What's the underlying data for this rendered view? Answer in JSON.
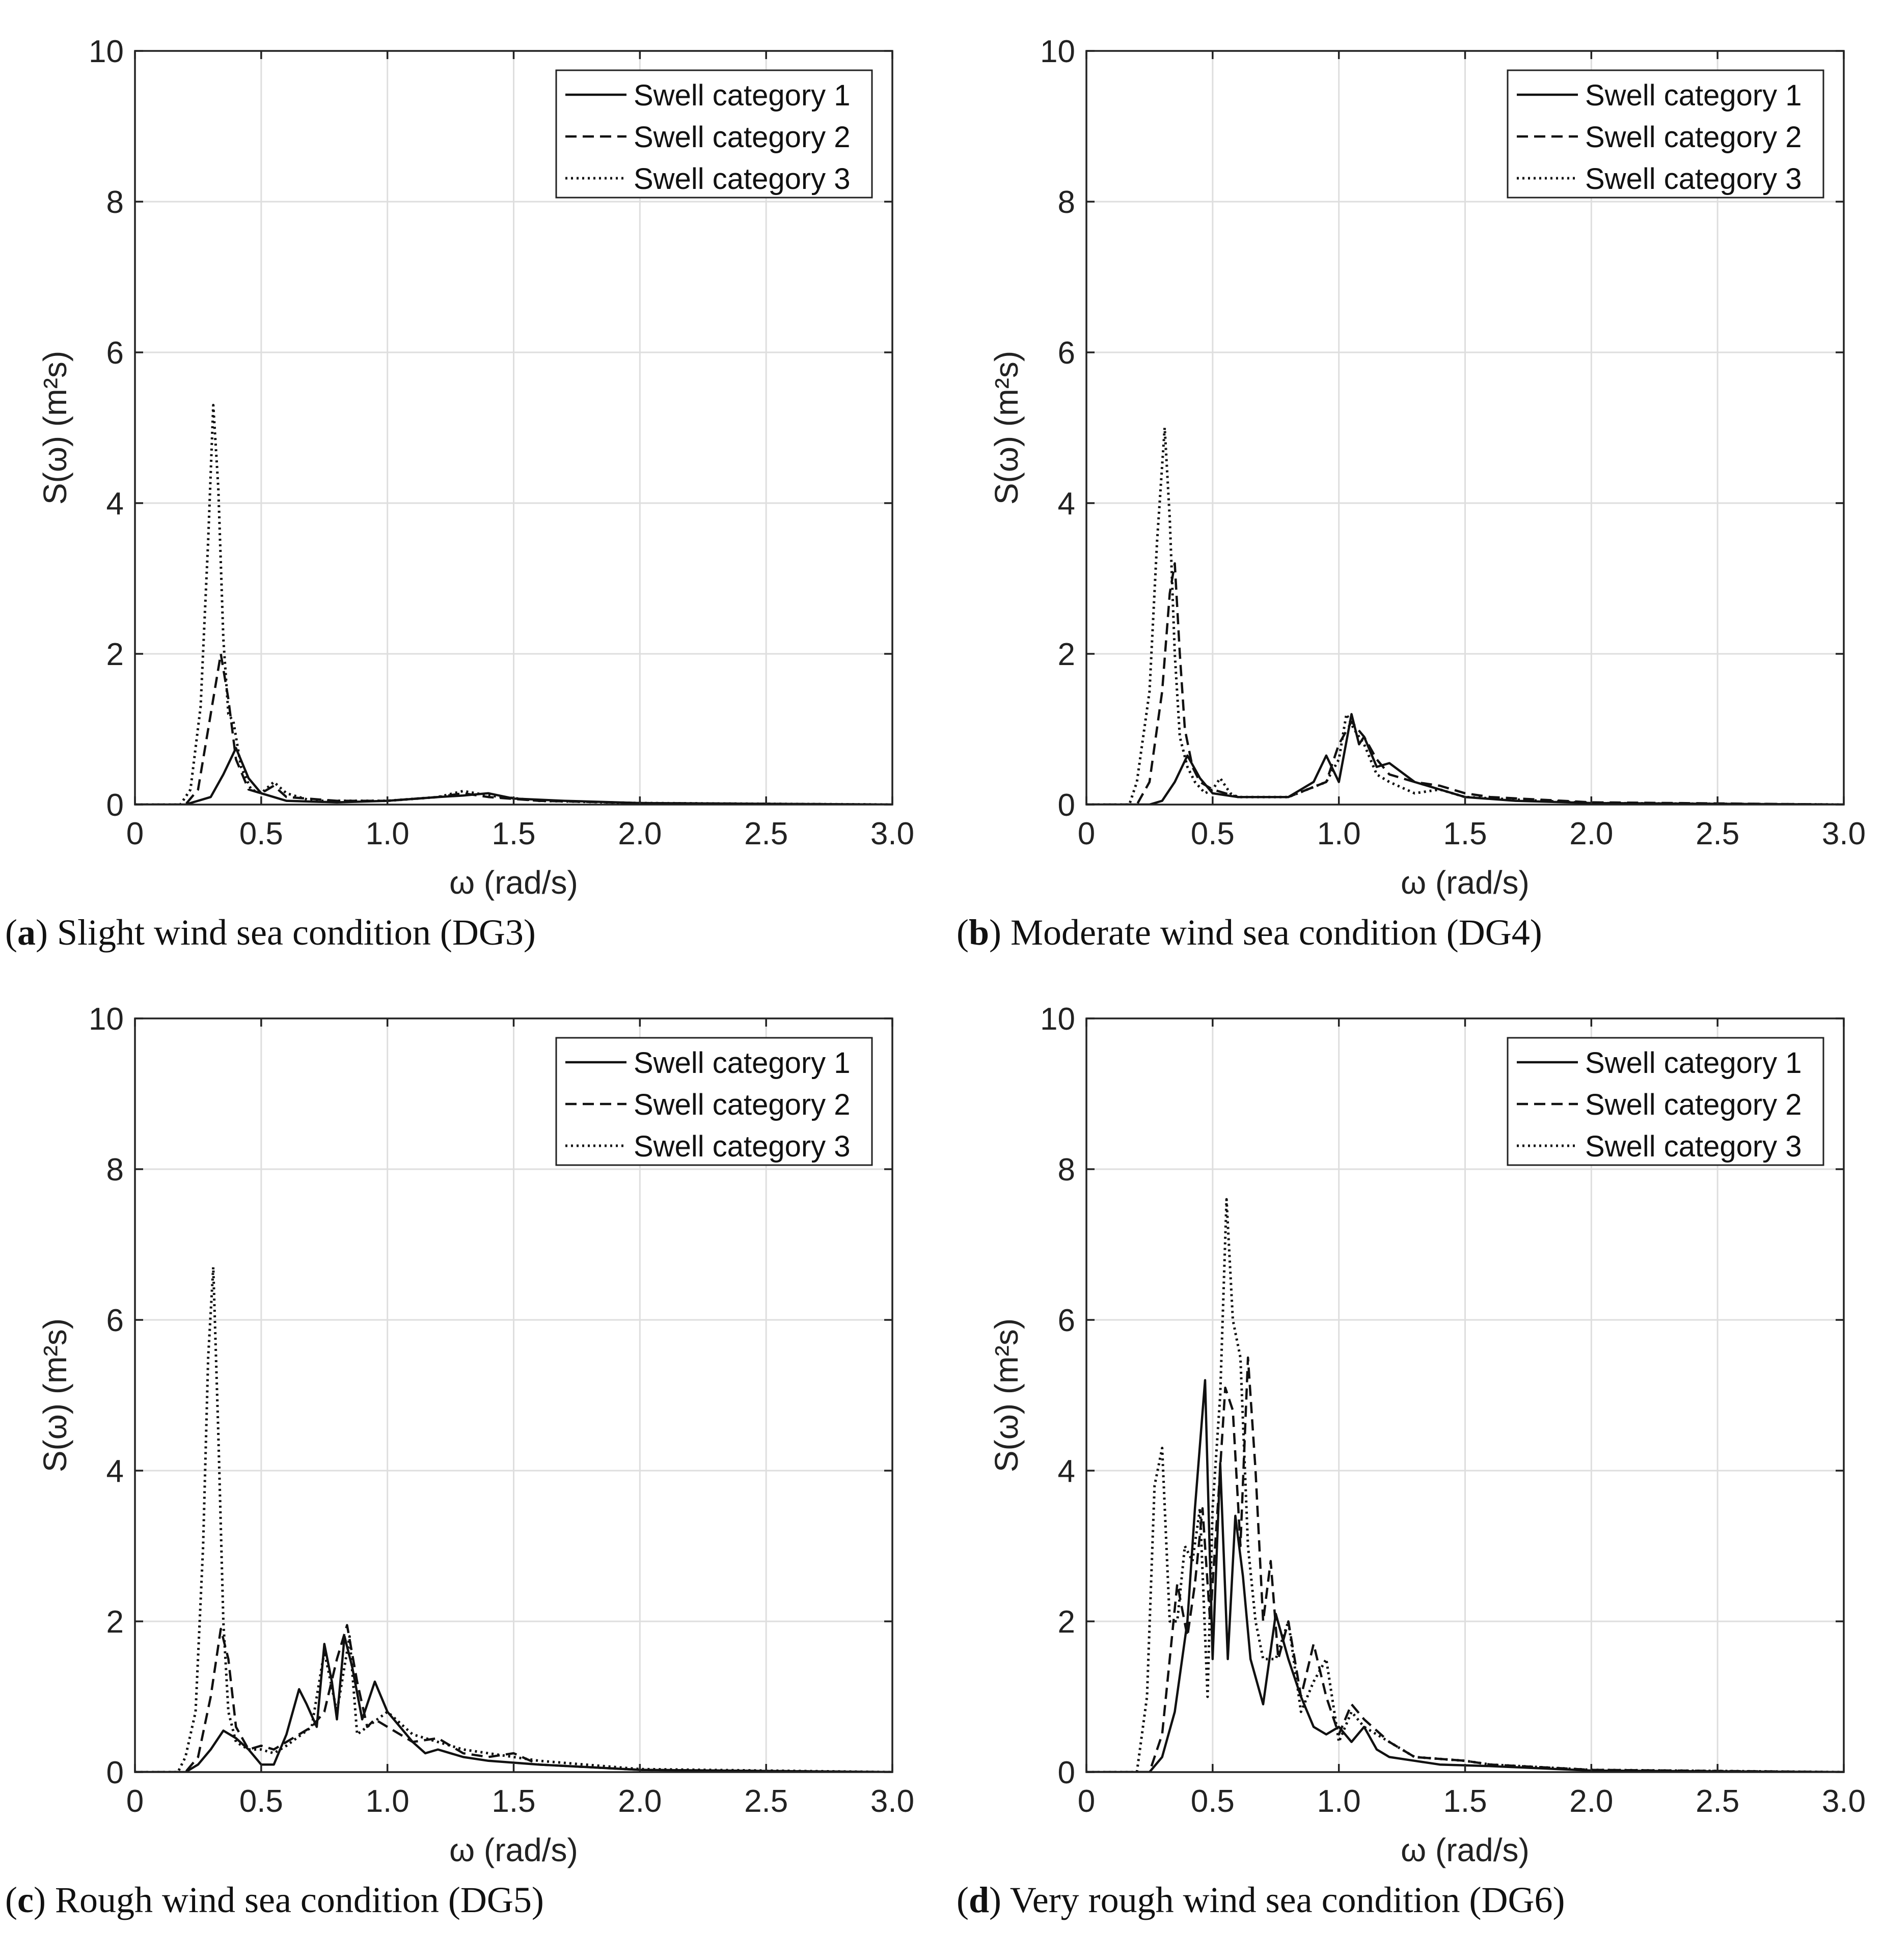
{
  "figure": {
    "panels": [
      {
        "id": "a",
        "caption_letter": "a",
        "caption_text": " Slight wind sea condition (DG3)",
        "chart_data": {
          "type": "line",
          "title": "",
          "xlabel": "ω (rad/s)",
          "ylabel": "S(ω) (m²s)",
          "xlim": [
            0,
            3.0
          ],
          "ylim": [
            0,
            10
          ],
          "xticks": [
            "0",
            "0.5",
            "1.0",
            "1.5",
            "2.0",
            "2.5",
            "3.0"
          ],
          "yticks": [
            "0",
            "2",
            "4",
            "6",
            "8",
            "10"
          ],
          "grid": true,
          "legend_position": "top-right",
          "series": [
            {
              "name": "Swell category 1",
              "style": "solid",
              "x": [
                0,
                0.2,
                0.3,
                0.35,
                0.4,
                0.45,
                0.5,
                0.6,
                0.8,
                1.0,
                1.2,
                1.3,
                1.4,
                1.5,
                1.7,
                2.0,
                3.0
              ],
              "y": [
                0,
                0,
                0.1,
                0.4,
                0.75,
                0.35,
                0.15,
                0.05,
                0.03,
                0.05,
                0.1,
                0.12,
                0.15,
                0.08,
                0.05,
                0.02,
                0
              ]
            },
            {
              "name": "Swell category 2",
              "style": "dashed",
              "x": [
                0,
                0.2,
                0.25,
                0.3,
                0.34,
                0.37,
                0.4,
                0.45,
                0.5,
                0.55,
                0.6,
                0.8,
                1.0,
                1.2,
                1.3,
                1.4,
                1.6,
                2.0,
                3.0
              ],
              "y": [
                0,
                0,
                0.2,
                1.2,
                2.0,
                1.4,
                0.6,
                0.2,
                0.15,
                0.25,
                0.1,
                0.05,
                0.05,
                0.1,
                0.15,
                0.1,
                0.05,
                0.02,
                0
              ]
            },
            {
              "name": "Swell category 3",
              "style": "dotted",
              "x": [
                0,
                0.18,
                0.22,
                0.26,
                0.29,
                0.31,
                0.33,
                0.35,
                0.37,
                0.39,
                0.42,
                0.46,
                0.5,
                0.55,
                0.6,
                0.7,
                1.0,
                1.2,
                1.3,
                1.4,
                1.6,
                2.0,
                3.0
              ],
              "y": [
                0,
                0,
                0.2,
                1.3,
                3.5,
                5.3,
                4.2,
                2.2,
                1.2,
                1.1,
                0.5,
                0.2,
                0.15,
                0.3,
                0.15,
                0.05,
                0.05,
                0.1,
                0.18,
                0.12,
                0.05,
                0.02,
                0
              ]
            }
          ]
        }
      },
      {
        "id": "b",
        "caption_letter": "b",
        "caption_text": " Moderate wind sea condition (DG4)",
        "chart_data": {
          "type": "line",
          "title": "",
          "xlabel": "ω (rad/s)",
          "ylabel": "S(ω) (m²s)",
          "xlim": [
            0,
            3.0
          ],
          "ylim": [
            0,
            10
          ],
          "xticks": [
            "0",
            "0.5",
            "1.0",
            "1.5",
            "2.0",
            "2.5",
            "3.0"
          ],
          "yticks": [
            "0",
            "2",
            "4",
            "6",
            "8",
            "10"
          ],
          "grid": true,
          "legend_position": "top-right",
          "series": [
            {
              "name": "Swell category 1",
              "style": "solid",
              "x": [
                0,
                0.25,
                0.3,
                0.35,
                0.4,
                0.45,
                0.5,
                0.6,
                0.8,
                0.9,
                0.95,
                1.0,
                1.05,
                1.08,
                1.1,
                1.15,
                1.2,
                1.3,
                1.4,
                1.5,
                1.7,
                2.0,
                3.0
              ],
              "y": [
                0,
                0,
                0.05,
                0.3,
                0.65,
                0.35,
                0.15,
                0.1,
                0.1,
                0.3,
                0.65,
                0.3,
                1.2,
                0.8,
                0.9,
                0.5,
                0.55,
                0.3,
                0.2,
                0.1,
                0.05,
                0.02,
                0
              ]
            },
            {
              "name": "Swell category 2",
              "style": "dashed",
              "x": [
                0,
                0.2,
                0.25,
                0.3,
                0.33,
                0.35,
                0.37,
                0.39,
                0.42,
                0.45,
                0.5,
                0.55,
                0.6,
                0.8,
                0.95,
                1.0,
                1.05,
                1.1,
                1.15,
                1.2,
                1.3,
                1.4,
                1.5,
                1.6,
                2.0,
                3.0
              ],
              "y": [
                0,
                0,
                0.3,
                1.5,
                2.8,
                3.2,
                2.0,
                1.0,
                0.5,
                0.3,
                0.2,
                0.15,
                0.1,
                0.1,
                0.3,
                0.8,
                1.1,
                0.9,
                0.6,
                0.4,
                0.3,
                0.25,
                0.15,
                0.1,
                0.03,
                0
              ]
            },
            {
              "name": "Swell category 3",
              "style": "dotted",
              "x": [
                0,
                0.17,
                0.2,
                0.25,
                0.28,
                0.31,
                0.33,
                0.35,
                0.37,
                0.4,
                0.43,
                0.47,
                0.5,
                0.53,
                0.57,
                0.6,
                0.8,
                0.95,
                1.0,
                1.03,
                1.06,
                1.1,
                1.15,
                1.2,
                1.3,
                1.4,
                1.5,
                1.8,
                2.0,
                3.0
              ],
              "y": [
                0,
                0,
                0.3,
                1.5,
                3.5,
                5.0,
                3.8,
                2.0,
                0.9,
                0.5,
                0.3,
                0.15,
                0.2,
                0.35,
                0.15,
                0.1,
                0.1,
                0.3,
                0.6,
                1.2,
                1.0,
                0.8,
                0.4,
                0.3,
                0.15,
                0.2,
                0.1,
                0.05,
                0.02,
                0
              ]
            }
          ]
        }
      },
      {
        "id": "c",
        "caption_letter": "c",
        "caption_text": " Rough wind sea condition (DG5)",
        "chart_data": {
          "type": "line",
          "title": "",
          "xlabel": "ω (rad/s)",
          "ylabel": "S(ω) (m²s)",
          "xlim": [
            0,
            3.0
          ],
          "ylim": [
            0,
            10
          ],
          "xticks": [
            "0",
            "0.5",
            "1.0",
            "1.5",
            "2.0",
            "2.5",
            "3.0"
          ],
          "yticks": [
            "0",
            "2",
            "4",
            "6",
            "8",
            "10"
          ],
          "grid": true,
          "legend_position": "top-right",
          "series": [
            {
              "name": "Swell category 1",
              "style": "solid",
              "x": [
                0,
                0.2,
                0.25,
                0.3,
                0.35,
                0.4,
                0.45,
                0.5,
                0.55,
                0.6,
                0.65,
                0.68,
                0.72,
                0.75,
                0.78,
                0.8,
                0.83,
                0.86,
                0.9,
                0.95,
                1.0,
                1.05,
                1.1,
                1.15,
                1.2,
                1.3,
                1.4,
                1.6,
                2.0,
                3.0
              ],
              "y": [
                0,
                0,
                0.1,
                0.3,
                0.55,
                0.45,
                0.3,
                0.1,
                0.1,
                0.5,
                1.1,
                0.9,
                0.6,
                1.7,
                1.2,
                0.7,
                1.8,
                1.4,
                0.7,
                1.2,
                0.8,
                0.6,
                0.4,
                0.25,
                0.3,
                0.2,
                0.15,
                0.1,
                0.03,
                0
              ]
            },
            {
              "name": "Swell category 2",
              "style": "dashed",
              "x": [
                0,
                0.2,
                0.25,
                0.3,
                0.34,
                0.37,
                0.4,
                0.45,
                0.5,
                0.55,
                0.6,
                0.7,
                0.75,
                0.8,
                0.84,
                0.88,
                0.92,
                0.95,
                1.0,
                1.1,
                1.2,
                1.3,
                1.4,
                1.5,
                1.6,
                2.0,
                3.0
              ],
              "y": [
                0,
                0,
                0.2,
                1.0,
                1.9,
                1.5,
                0.6,
                0.3,
                0.35,
                0.3,
                0.4,
                0.6,
                0.8,
                1.5,
                1.95,
                1.2,
                0.6,
                0.7,
                0.6,
                0.4,
                0.45,
                0.25,
                0.2,
                0.25,
                0.1,
                0.03,
                0
              ]
            },
            {
              "name": "Swell category 3",
              "style": "dotted",
              "x": [
                0,
                0.17,
                0.2,
                0.24,
                0.27,
                0.29,
                0.31,
                0.33,
                0.35,
                0.37,
                0.4,
                0.45,
                0.5,
                0.55,
                0.6,
                0.7,
                0.75,
                0.8,
                0.85,
                0.88,
                0.92,
                1.0,
                1.1,
                1.2,
                1.3,
                1.4,
                1.5,
                1.6,
                2.0,
                3.0
              ],
              "y": [
                0,
                0,
                0.2,
                0.8,
                3.0,
                5.5,
                6.7,
                4.5,
                2.0,
                0.8,
                0.4,
                0.3,
                0.3,
                0.25,
                0.35,
                0.6,
                1.6,
                0.8,
                1.8,
                0.5,
                0.6,
                0.8,
                0.5,
                0.4,
                0.3,
                0.25,
                0.2,
                0.15,
                0.04,
                0
              ]
            }
          ]
        }
      },
      {
        "id": "d",
        "caption_letter": "d",
        "caption_text": " Very rough wind sea condition (DG6)",
        "chart_data": {
          "type": "line",
          "title": "",
          "xlabel": "ω (rad/s)",
          "ylabel": "S(ω) (m²s)",
          "xlim": [
            0,
            3.0
          ],
          "ylim": [
            0,
            10
          ],
          "xticks": [
            "0",
            "0.5",
            "1.0",
            "1.5",
            "2.0",
            "2.5",
            "3.0"
          ],
          "yticks": [
            "0",
            "2",
            "4",
            "6",
            "8",
            "10"
          ],
          "grid": true,
          "legend_position": "top-right",
          "series": [
            {
              "name": "Swell category 1",
              "style": "solid",
              "x": [
                0,
                0.25,
                0.3,
                0.35,
                0.4,
                0.43,
                0.47,
                0.5,
                0.53,
                0.56,
                0.59,
                0.62,
                0.65,
                0.7,
                0.75,
                0.8,
                0.85,
                0.9,
                0.95,
                1.0,
                1.05,
                1.1,
                1.15,
                1.2,
                1.3,
                1.4,
                1.6,
                2.0,
                3.0
              ],
              "y": [
                0,
                0,
                0.2,
                0.8,
                2.0,
                3.5,
                5.2,
                1.5,
                4.1,
                1.5,
                3.4,
                2.6,
                1.5,
                0.9,
                2.1,
                1.5,
                1.0,
                0.6,
                0.5,
                0.6,
                0.4,
                0.6,
                0.3,
                0.2,
                0.15,
                0.1,
                0.08,
                0.02,
                0
              ]
            },
            {
              "name": "Swell category 2",
              "style": "dashed",
              "x": [
                0,
                0.25,
                0.3,
                0.33,
                0.36,
                0.4,
                0.43,
                0.46,
                0.49,
                0.52,
                0.55,
                0.58,
                0.61,
                0.64,
                0.67,
                0.7,
                0.73,
                0.76,
                0.8,
                0.85,
                0.9,
                0.95,
                1.0,
                1.05,
                1.1,
                1.2,
                1.3,
                1.5,
                1.6,
                2.0,
                3.0
              ],
              "y": [
                0,
                0,
                0.5,
                1.5,
                2.5,
                1.8,
                2.5,
                3.5,
                2.0,
                3.5,
                5.1,
                4.8,
                3.0,
                5.5,
                4.0,
                2.0,
                2.8,
                1.5,
                2.0,
                1.0,
                1.7,
                1.0,
                0.5,
                0.9,
                0.7,
                0.4,
                0.2,
                0.15,
                0.1,
                0.03,
                0
              ]
            },
            {
              "name": "Swell category 3",
              "style": "dotted",
              "x": [
                0,
                0.2,
                0.24,
                0.27,
                0.3,
                0.33,
                0.36,
                0.39,
                0.42,
                0.45,
                0.48,
                0.5,
                0.53,
                0.555,
                0.58,
                0.61,
                0.64,
                0.67,
                0.7,
                0.75,
                0.8,
                0.85,
                0.9,
                0.95,
                1.0,
                1.05,
                1.1,
                1.2,
                1.3,
                1.5,
                1.6,
                2.0,
                3.0
              ],
              "y": [
                0,
                0,
                1.0,
                3.8,
                4.3,
                2.0,
                2.0,
                3.0,
                2.8,
                3.5,
                1.0,
                3.5,
                5.0,
                7.6,
                6.0,
                5.5,
                3.0,
                2.0,
                1.5,
                1.5,
                2.0,
                0.8,
                1.2,
                1.5,
                0.4,
                0.8,
                0.6,
                0.4,
                0.2,
                0.15,
                0.1,
                0.03,
                0
              ]
            }
          ]
        }
      }
    ]
  }
}
